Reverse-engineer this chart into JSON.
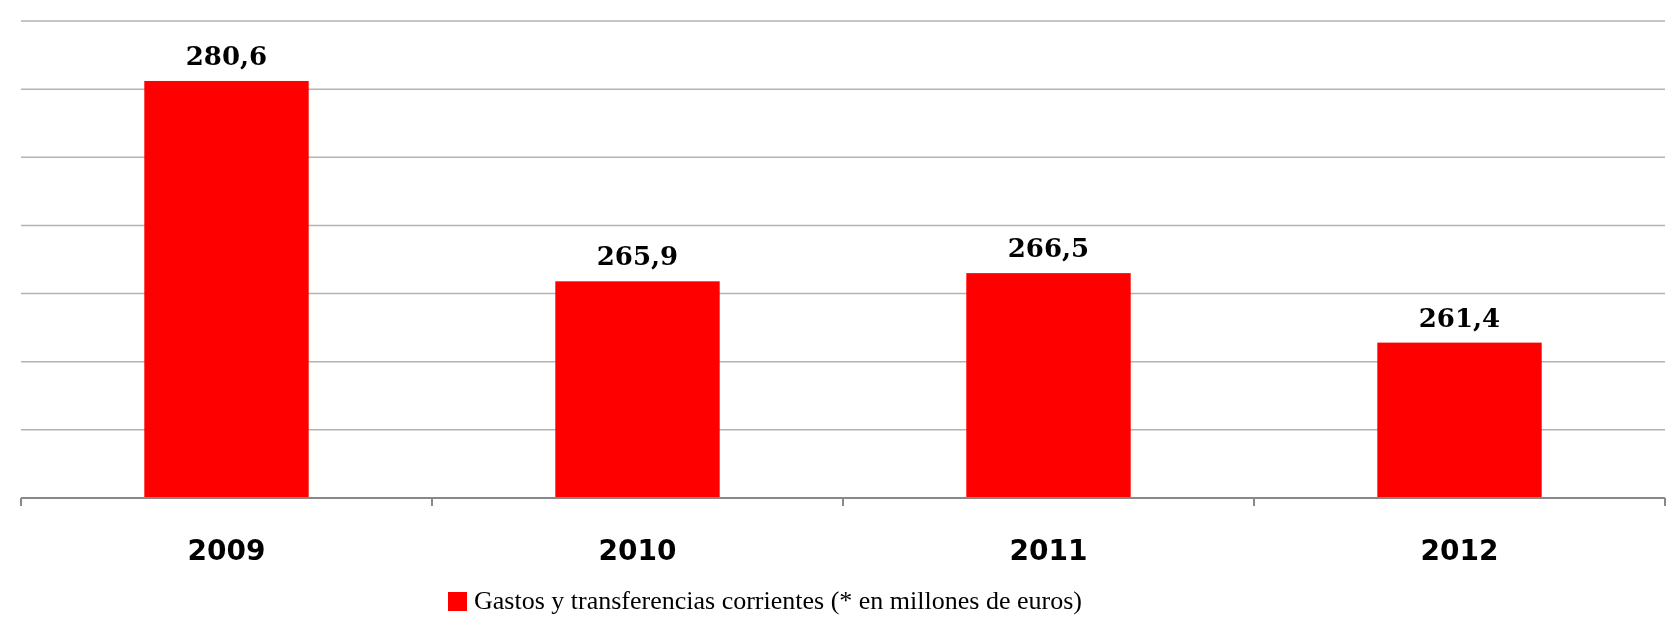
{
  "chart_data": {
    "type": "bar",
    "categories": [
      "2009",
      "2010",
      "2011",
      "2012"
    ],
    "series": [
      {
        "name": "Gastos y transferencias corrientes (* en millones de euros)",
        "color": "#ff0000",
        "values": [
          280.6,
          265.9,
          266.5,
          261.4
        ],
        "value_labels": [
          "280,6",
          "265,9",
          "266,5",
          "261,4"
        ]
      }
    ],
    "ylim": [
      250,
      285
    ],
    "yticks": [
      {
        "value": 250,
        "label": null
      },
      {
        "value": 255,
        "label": null
      },
      {
        "value": 260,
        "label": null
      },
      {
        "value": 265,
        "label": null
      },
      {
        "value": 270,
        "label": null
      },
      {
        "value": 275,
        "label": null
      },
      {
        "value": 280,
        "label": null
      },
      {
        "value": 285,
        "label": null
      }
    ],
    "tick_labels": "x",
    "grid": "y",
    "legend": "bottom"
  }
}
